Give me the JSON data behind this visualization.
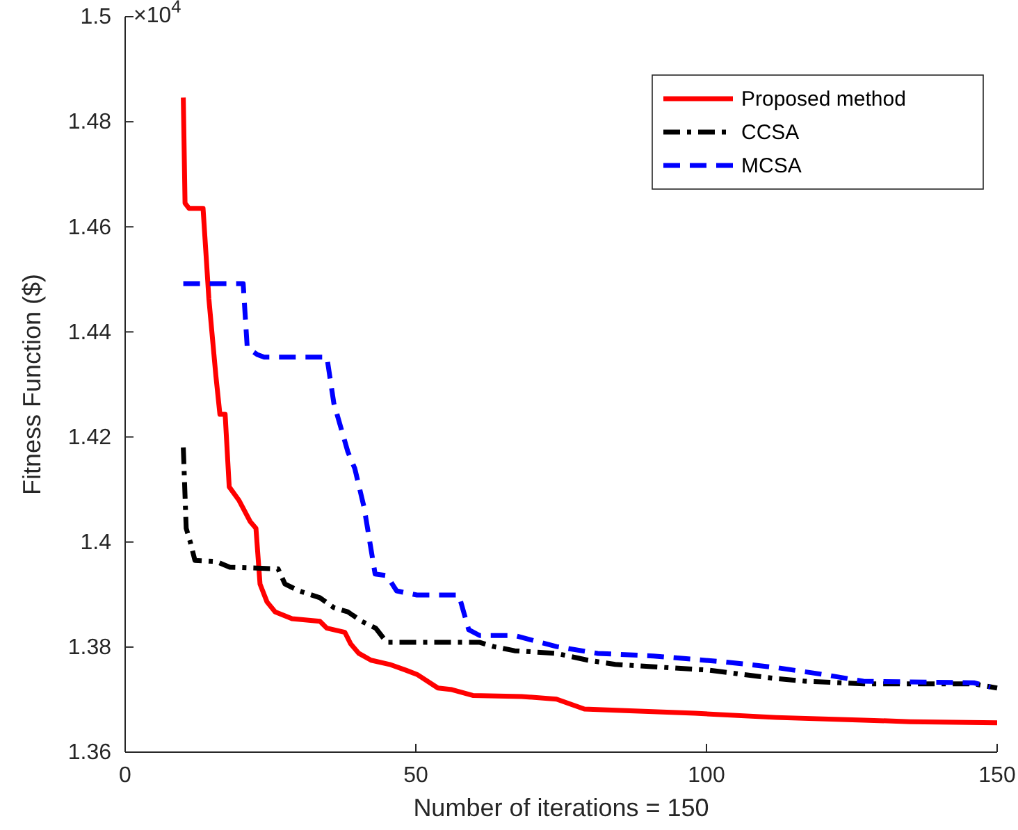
{
  "chart_data": {
    "type": "line",
    "xlabel": "Number of iterations = 150",
    "ylabel": "Fitness Function ($)",
    "annotations": [
      "×10$^{4}$"
    ],
    "xlim": [
      0,
      150
    ],
    "xticks": [
      0,
      50,
      100,
      150
    ],
    "ylim": [
      1.36,
      1.5
    ],
    "yticks": [
      1.36,
      1.38,
      1.4,
      1.42,
      1.44,
      1.46,
      1.48,
      1.5
    ],
    "grid": false,
    "legend": "top right",
    "marker": "none",
    "series": [
      {
        "name": "Proposed method",
        "color": "#ff0000",
        "line_style": "solid",
        "x": [
          10,
          10.3,
          11,
          13.4,
          14.4,
          15.6,
          16.3,
          17.2,
          17.9,
          19.6,
          21.5,
          22.5,
          23.2,
          24.4,
          25.8,
          28.7,
          33.5,
          34.7,
          37.8,
          38.8,
          40.2,
          42.3,
          45.5,
          48.3,
          50.2,
          53.8,
          56.2,
          59.8,
          68.2,
          74.2,
          79,
          86,
          98,
          112,
          127,
          135,
          150
        ],
        "values": [
          1.4846,
          1.4645,
          1.4635,
          1.4635,
          1.4463,
          1.4317,
          1.4243,
          1.4243,
          1.4105,
          1.4079,
          1.4039,
          1.4026,
          1.392,
          1.3886,
          1.3867,
          1.3854,
          1.3849,
          1.3836,
          1.3828,
          1.3806,
          1.3788,
          1.3775,
          1.3767,
          1.3756,
          1.3748,
          1.3722,
          1.3719,
          1.3708,
          1.3706,
          1.3701,
          1.3682,
          1.3679,
          1.3674,
          1.3666,
          1.3661,
          1.3658,
          1.3656
        ]
      },
      {
        "name": "CCSA",
        "color": "#000000",
        "line_style": "dashdot",
        "x": [
          10,
          10.5,
          11.2,
          12,
          15.6,
          18,
          26.3,
          27.5,
          29.9,
          33.5,
          35.9,
          38.3,
          40.7,
          43.1,
          45,
          61,
          63.4,
          67,
          74.2,
          79.6,
          84.3,
          100.5,
          112,
          117,
          127,
          146,
          150
        ],
        "values": [
          1.418,
          1.4026,
          1.4,
          1.3965,
          1.3963,
          1.3952,
          1.3949,
          1.392,
          1.3907,
          1.3894,
          1.3875,
          1.3867,
          1.3849,
          1.3836,
          1.3809,
          1.3809,
          1.3801,
          1.3793,
          1.3788,
          1.3775,
          1.3767,
          1.3756,
          1.374,
          1.3735,
          1.373,
          1.373,
          1.3722
        ]
      },
      {
        "name": "MCSA",
        "color": "#0000ff",
        "line_style": "dashed",
        "x": [
          10,
          20.3,
          21,
          22.7,
          23.9,
          34.7,
          35.9,
          38.3,
          39.5,
          41.1,
          43,
          45,
          46.7,
          50.2,
          57.4,
          59.1,
          61,
          67,
          74.2,
          81.3,
          90.9,
          102.9,
          112,
          120,
          127,
          146,
          148.8
        ],
        "values": [
          1.4492,
          1.4492,
          1.437,
          1.4357,
          1.4352,
          1.4352,
          1.4264,
          1.4172,
          1.414,
          1.4066,
          1.3939,
          1.3936,
          1.3907,
          1.3899,
          1.3899,
          1.3833,
          1.3822,
          1.3822,
          1.3801,
          1.3788,
          1.3783,
          1.3772,
          1.3761,
          1.3748,
          1.3735,
          1.3732,
          1.3724
        ]
      }
    ]
  }
}
